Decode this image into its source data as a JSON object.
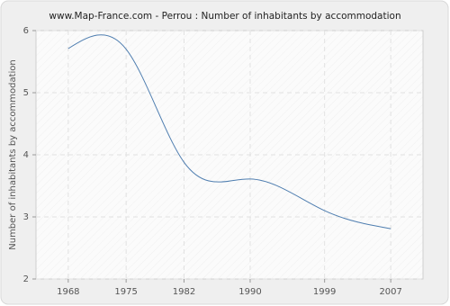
{
  "chart_data": {
    "type": "line",
    "title": "www.Map-France.com - Perrou : Number of inhabitants by accommodation",
    "y_label": "Number of inhabitants by accommodation",
    "x": [
      1968,
      1975,
      1982,
      1990,
      1999,
      2007
    ],
    "series": [
      {
        "name": "Perrou",
        "color": "#4f7eb0",
        "values": [
          5.71,
          5.7,
          3.88,
          3.61,
          3.1,
          2.81
        ]
      }
    ],
    "xlim": [
      1964.1,
      2010.9
    ],
    "xticks": [
      1968,
      1975,
      1982,
      1990,
      1999,
      2007
    ],
    "ylim": [
      2,
      6
    ],
    "yticks": [
      2,
      3,
      4,
      5,
      6
    ],
    "grid": true
  }
}
